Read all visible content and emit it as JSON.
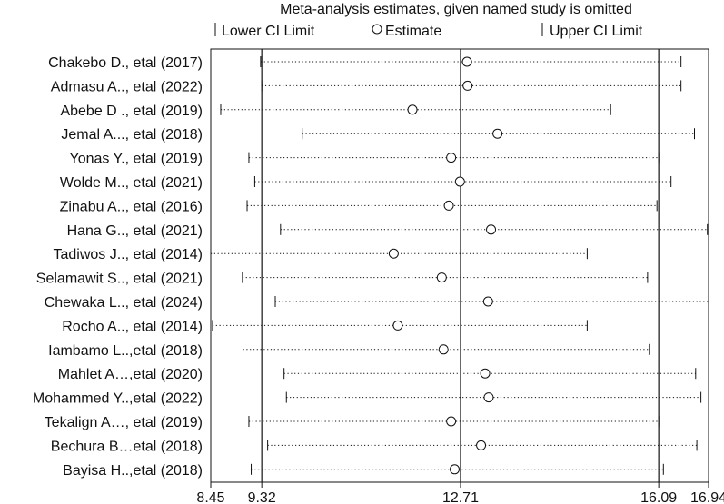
{
  "chart_data": {
    "type": "forest",
    "title": "Meta-analysis estimates, given named study is omitted",
    "legend": {
      "position": "top",
      "lower_label": "Lower CI Limit",
      "estimate_label": "Estimate",
      "upper_label": "Upper CI Limit"
    },
    "xlim": [
      8.45,
      16.94
    ],
    "x_ticks": [
      {
        "value": 8.45,
        "label": "8.45"
      },
      {
        "value": 9.32,
        "label": "9.32"
      },
      {
        "value": 12.71,
        "label": "12.71"
      },
      {
        "value": 16.09,
        "label": "16.09"
      },
      {
        "value": 16.94,
        "label": "16.94"
      }
    ],
    "reference_lines": [
      9.32,
      12.71,
      16.09
    ],
    "studies": [
      {
        "label": "Chakebo D., etal  (2017)",
        "lower": 9.3,
        "estimate": 12.82,
        "upper": 16.47
      },
      {
        "label": "Admasu A.., etal (2022)",
        "lower": 9.32,
        "estimate": 12.83,
        "upper": 16.47
      },
      {
        "label": "Abebe D ., etal  (2019)",
        "lower": 8.62,
        "estimate": 11.89,
        "upper": 15.27
      },
      {
        "label": "Jemal A..., etal (2018)",
        "lower": 10.01,
        "estimate": 13.34,
        "upper": 16.7
      },
      {
        "label": "Yonas Y., etal (2019)",
        "lower": 9.1,
        "estimate": 12.55,
        "upper": 16.09
      },
      {
        "label": "Wolde M.., etal (2021)",
        "lower": 9.2,
        "estimate": 12.7,
        "upper": 16.3
      },
      {
        "label": "Zinabu A.., etal (2016)",
        "lower": 9.07,
        "estimate": 12.51,
        "upper": 16.06
      },
      {
        "label": "Hana G.., etal (2021)",
        "lower": 9.64,
        "estimate": 13.23,
        "upper": 16.92
      },
      {
        "label": "Tadiwos J.., etal (2014)",
        "lower": 8.45,
        "estimate": 11.57,
        "upper": 14.87
      },
      {
        "label": "Selamawit S.., etal (2021)",
        "lower": 8.99,
        "estimate": 12.39,
        "upper": 15.9
      },
      {
        "label": "Chewaka L.., etal (2024)",
        "lower": 9.55,
        "estimate": 13.18,
        "upper": 16.94
      },
      {
        "label": "Rocho A.., etal (2014)",
        "lower": 8.48,
        "estimate": 11.64,
        "upper": 14.87
      },
      {
        "label": "Iambamo L..,etal (2018)",
        "lower": 9.0,
        "estimate": 12.42,
        "upper": 15.93
      },
      {
        "label": "Mahlet A…,etal (2020)",
        "lower": 9.7,
        "estimate": 13.13,
        "upper": 16.72
      },
      {
        "label": "Mohammed Y..,etal (2022)",
        "lower": 9.74,
        "estimate": 13.19,
        "upper": 16.81
      },
      {
        "label": "Tekalign A…, etal (2019)",
        "lower": 9.1,
        "estimate": 12.55,
        "upper": 16.09
      },
      {
        "label": "Bechura B…etal (2018)",
        "lower": 9.42,
        "estimate": 13.06,
        "upper": 16.74
      },
      {
        "label": "Bayisa H..,etal (2018)",
        "lower": 9.14,
        "estimate": 12.61,
        "upper": 16.17
      }
    ]
  }
}
